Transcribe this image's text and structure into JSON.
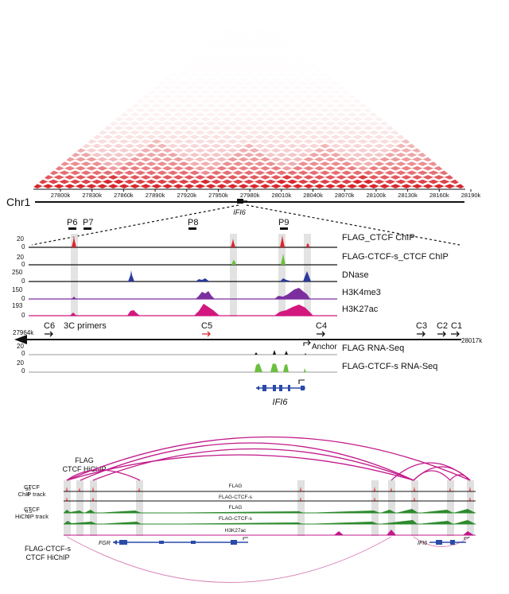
{
  "top_panel": {
    "chromosome_label": "Chr1",
    "heatmap_colors": {
      "low": "#ffffff",
      "high": "#d7262c"
    },
    "coordinate_ticks": [
      "27800k",
      "27830k",
      "27860k",
      "27890k",
      "27920k",
      "27950k",
      "27980k",
      "28010k",
      "28040k",
      "28070k",
      "28100k",
      "28130k",
      "28160k",
      "28190k"
    ],
    "gene_label": "IFI6"
  },
  "middle_panel": {
    "primer_labels": [
      "P6",
      "P7",
      "P8",
      "P9"
    ],
    "tracks": [
      {
        "label": "FLAG_CTCF ChIP",
        "ymax": "20",
        "ymin": "0",
        "color": "#d7262c"
      },
      {
        "label": "FLAG-CTCF-s_CTCF ChIP",
        "ymax": "20",
        "ymin": "0",
        "color": "#6cbf3e"
      },
      {
        "label": "DNase",
        "ymax": "250",
        "ymin": "0",
        "color": "#2b3a9e"
      },
      {
        "label": "H3K4me3",
        "ymax": "150",
        "ymin": "0",
        "color": "#7b2f9e"
      },
      {
        "label": "H3K27ac",
        "ymax": "193",
        "ymin": "0",
        "color": "#d2177f"
      }
    ],
    "left_coord": "27964k",
    "right_coord": "28017k",
    "site_labels": [
      "C6",
      "3C primers",
      "C5",
      "C4",
      "C3",
      "C2",
      "C1"
    ],
    "anchor_label": "Anchor",
    "rna_tracks": [
      {
        "label": "FLAG RNA-Seq",
        "ymax": "20",
        "ymin": "0",
        "color": "#111111"
      },
      {
        "label": "FLAG-CTCF-s RNA-Seq",
        "ymax": "20",
        "ymin": "0",
        "color": "#6cbf3e"
      }
    ],
    "gene_label": "IFI6"
  },
  "bottom_panel": {
    "flag_hichip_label": [
      "FLAG",
      "CTCF HiChIP"
    ],
    "ctcf_chip_label": [
      "CTCF",
      "ChIP track"
    ],
    "ctcf_hichip_label": [
      "CTCF",
      "HiChIP track"
    ],
    "flag_ctcf_s_hichip_label": [
      "FLAG-CTCF-s",
      "CTCF HiChIP"
    ],
    "track_labels": [
      "FLAG",
      "FLAG-CTCF-s",
      "FLAG",
      "FLAG-CTCF-s",
      "H3K27ac"
    ],
    "chip_scale": [
      "30",
      "0"
    ],
    "hichip_scale": [
      "0.5",
      "0"
    ],
    "gene_left": "FGR",
    "gene_right": "IFI6",
    "arc_color": "#c2188a"
  }
}
